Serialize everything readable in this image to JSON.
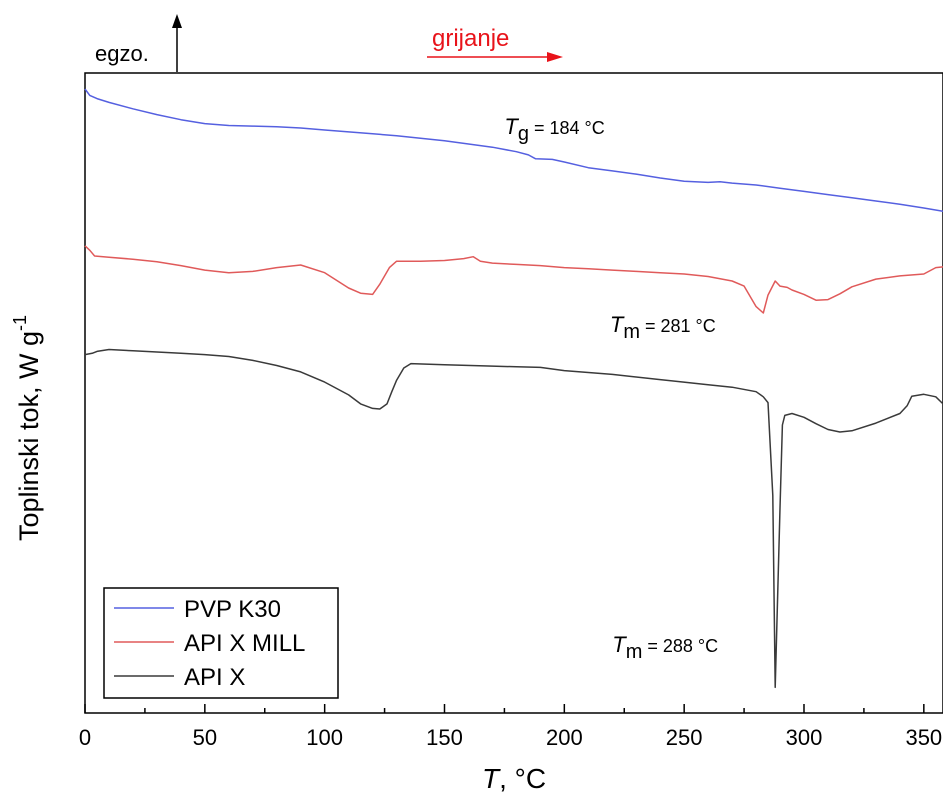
{
  "chart_data": {
    "type": "line",
    "xlabel": "T, °C",
    "xlabel_italic": "T",
    "xlabel_rest": ", °C",
    "ylabel": "Toplinski tok, W g-1",
    "ylabel_main": "Toplinski tok, W g",
    "ylabel_sup": "-1",
    "xlim": [
      0,
      358
    ],
    "xticks": [
      0,
      50,
      100,
      150,
      200,
      250,
      300,
      350
    ],
    "yticks_shown": false,
    "ylim": [
      0,
      100
    ],
    "legend_position": "bottom-left",
    "indicators": {
      "exo_label": "egzo.",
      "heating_label": "grijanje",
      "heating_color": "#e8131a"
    },
    "series": [
      {
        "name": "PVP K30",
        "color": "#5560e0",
        "x": [
          0,
          2,
          5,
          10,
          20,
          30,
          40,
          50,
          60,
          70,
          80,
          90,
          100,
          110,
          120,
          130,
          140,
          150,
          160,
          170,
          180,
          185,
          188,
          195,
          200,
          210,
          220,
          230,
          240,
          250,
          260,
          265,
          270,
          280,
          290,
          300,
          310,
          320,
          330,
          340,
          350,
          358
        ],
        "y": [
          97.5,
          96.5,
          96.0,
          95.4,
          94.4,
          93.5,
          92.7,
          92.1,
          91.8,
          91.7,
          91.6,
          91.4,
          91.1,
          90.8,
          90.5,
          90.2,
          89.8,
          89.4,
          88.9,
          88.4,
          87.7,
          87.2,
          86.6,
          86.5,
          86.1,
          85.2,
          84.7,
          84.2,
          83.6,
          83.1,
          82.9,
          83.0,
          82.8,
          82.5,
          82.0,
          81.5,
          81.0,
          80.5,
          80.0,
          79.5,
          78.9,
          78.4
        ]
      },
      {
        "name": "API X MILL",
        "color": "#e05a5a",
        "x": [
          0,
          2,
          4,
          10,
          20,
          30,
          40,
          50,
          60,
          70,
          80,
          90,
          100,
          110,
          115,
          120,
          123,
          127,
          130,
          140,
          150,
          158,
          162,
          165,
          170,
          180,
          190,
          200,
          210,
          220,
          230,
          240,
          250,
          260,
          270,
          275,
          280,
          283,
          285,
          288,
          290,
          293,
          295,
          300,
          305,
          310,
          315,
          320,
          330,
          340,
          350,
          355,
          358
        ],
        "y": [
          73.0,
          72.3,
          71.4,
          71.2,
          70.9,
          70.5,
          69.9,
          69.2,
          68.8,
          69.0,
          69.6,
          70.0,
          68.8,
          66.4,
          65.6,
          65.4,
          67.0,
          69.6,
          70.6,
          70.6,
          70.7,
          71.0,
          71.3,
          70.6,
          70.3,
          70.1,
          69.9,
          69.6,
          69.4,
          69.2,
          69.0,
          68.8,
          68.6,
          68.2,
          67.5,
          66.7,
          63.5,
          62.5,
          65.3,
          67.5,
          66.7,
          66.5,
          66.1,
          65.4,
          64.5,
          64.6,
          65.5,
          66.6,
          67.8,
          68.3,
          68.6,
          69.6,
          69.7
        ]
      },
      {
        "name": "API X",
        "color": "#3a3a3a",
        "x": [
          0,
          3,
          5,
          10,
          20,
          30,
          40,
          50,
          60,
          70,
          80,
          90,
          100,
          110,
          115,
          120,
          123,
          126,
          128,
          130,
          133,
          136,
          150,
          170,
          180,
          190,
          200,
          220,
          240,
          260,
          270,
          280,
          283,
          285,
          287,
          288,
          290,
          291,
          292,
          295,
          300,
          305,
          310,
          315,
          320,
          330,
          340,
          343,
          345,
          350,
          355,
          358
        ],
        "y": [
          56.0,
          56.2,
          56.5,
          56.8,
          56.6,
          56.4,
          56.2,
          56.0,
          55.7,
          55.1,
          54.3,
          53.3,
          51.7,
          49.7,
          48.3,
          47.6,
          47.5,
          48.3,
          50.2,
          52.0,
          53.9,
          54.6,
          54.4,
          54.2,
          54.1,
          54.0,
          53.5,
          52.9,
          52.1,
          51.3,
          50.9,
          50.2,
          49.4,
          48.5,
          34.0,
          4.0,
          32.0,
          45.0,
          46.5,
          46.8,
          46.2,
          45.2,
          44.3,
          43.9,
          44.1,
          45.3,
          46.8,
          48.0,
          49.5,
          49.8,
          49.4,
          48.3
        ]
      }
    ],
    "annotations": [
      {
        "sym": "T",
        "sub": "g",
        "rest": " = 184 °C",
        "x": 175,
        "y": 90.5
      },
      {
        "sym": "T",
        "sub": "m",
        "rest": " = 281 °C",
        "x": 219,
        "y": 59.5
      },
      {
        "sym": "T",
        "sub": "m",
        "rest": " = 288 °C",
        "x": 220,
        "y": 9.5
      }
    ]
  }
}
